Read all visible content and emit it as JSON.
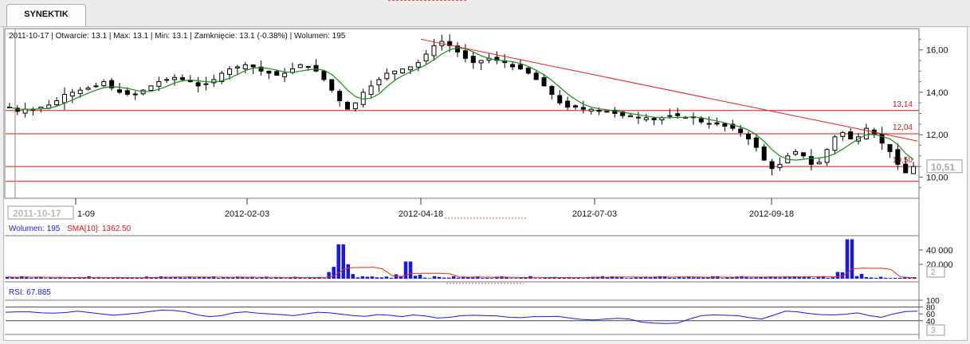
{
  "window": {
    "tab_label": "SYNEKTIK"
  },
  "info_bar": {
    "date": "2011-10-17",
    "open": "Otwarcie: 13.1",
    "max": "Max: 13.1",
    "min": "Min: 13.1",
    "close": "Zamknięcie: 13.1 (-0.38%)",
    "volume": "Wolumen: 195"
  },
  "colors": {
    "candle": "#000000",
    "sma_line": "#1e8a1e",
    "support_lines": "#d01818",
    "trend_line": "#e02020",
    "volume_bars": "#1a1adf",
    "volume_sma": "#e03010",
    "rsi_line": "#1a1adf",
    "cursor": "#888888"
  },
  "chart_data": [
    {
      "type": "candlestick",
      "name": "price",
      "x_ticks": [
        "1-09",
        "2012-02-03",
        "2012-04-18",
        "2012-07-03",
        "2012-09-18"
      ],
      "cursor_label": "2011-10-17",
      "y_ticks": [
        "10,00",
        "12,00",
        "14,00",
        "16,00"
      ],
      "ylim": [
        9.0,
        17.0
      ],
      "grid": true,
      "horizontal_lines": [
        {
          "label": "13,14",
          "value": 13.14
        },
        {
          "label": "12,04",
          "value": 12.04
        },
        {
          "label": "10,50",
          "value": 10.5
        },
        {
          "label": "",
          "value": 9.8
        }
      ],
      "trend_line": {
        "from": [
          "2012-04-18",
          16.5
        ],
        "to": [
          "end",
          11.7
        ]
      },
      "last_value_label": "10,51",
      "series_closes": [
        13.3,
        13.1,
        13.2,
        13.2,
        13.3,
        13.4,
        13.6,
        13.9,
        14.0,
        14.1,
        14.2,
        14.3,
        14.5,
        14.2,
        14.0,
        13.9,
        13.9,
        14.1,
        14.3,
        14.5,
        14.6,
        14.7,
        14.6,
        14.5,
        14.3,
        14.4,
        14.6,
        14.9,
        15.1,
        15.2,
        15.3,
        15.2,
        15.0,
        14.9,
        14.8,
        14.9,
        15.1,
        15.3,
        15.2,
        15.0,
        14.6,
        14.1,
        13.6,
        13.2,
        13.5,
        14.0,
        14.3,
        14.6,
        14.9,
        15.0,
        15.1,
        15.2,
        15.4,
        15.8,
        16.2,
        16.4,
        16.2,
        15.9,
        15.6,
        15.4,
        15.5,
        15.6,
        15.5,
        15.4,
        15.2,
        15.1,
        14.9,
        14.6,
        14.3,
        13.9,
        13.5,
        13.3,
        13.3,
        13.2,
        13.2,
        13.1,
        13.1,
        13.0,
        12.9,
        12.9,
        12.8,
        12.8,
        12.7,
        12.8,
        12.9,
        12.9,
        12.8,
        12.8,
        12.6,
        12.5,
        12.5,
        12.4,
        12.3,
        12.1,
        11.8,
        11.4,
        10.8,
        10.4,
        10.6,
        11.0,
        11.2,
        11.0,
        10.6,
        10.7,
        11.3,
        11.9,
        12.1,
        11.8,
        11.9,
        12.3,
        12.0,
        11.6,
        11.2,
        10.6,
        10.2,
        10.5
      ],
      "indicator": "SMA"
    },
    {
      "type": "bar",
      "name": "volume",
      "legend": "Wolumen: 195",
      "sma_legend": "SMA[10]: 1362.50",
      "y_ticks": [
        "20 000",
        "40 000"
      ],
      "ylim": [
        0,
        60000
      ],
      "marker_label": "2",
      "spikes": [
        {
          "approx_position": 0.365,
          "value": 48000
        },
        {
          "approx_position": 0.44,
          "value": 24000
        },
        {
          "approx_position": 0.925,
          "value": 55000
        }
      ],
      "typical_value": 2000
    },
    {
      "type": "line",
      "name": "rsi",
      "legend": "RSI: 67.885",
      "y_ticks": [
        "100",
        "80",
        "60",
        "40"
      ],
      "ylim": [
        0,
        100
      ],
      "reference_lines": [
        80,
        40
      ],
      "marker_label": "3",
      "values": [
        65,
        66,
        66,
        63,
        62,
        64,
        68,
        64,
        60,
        56,
        59,
        62,
        67,
        71,
        70,
        66,
        57,
        52,
        55,
        63,
        66,
        62,
        60,
        58,
        55,
        60,
        65,
        63,
        59,
        55,
        53,
        58,
        56,
        52,
        57,
        54,
        48,
        50,
        55,
        56,
        55,
        54,
        50,
        49,
        52,
        52,
        53,
        48,
        44,
        42,
        45,
        47,
        45,
        36,
        33,
        32,
        33,
        45,
        55,
        57,
        56,
        55,
        49,
        45,
        56,
        68,
        66,
        61,
        58,
        57,
        59,
        63,
        55,
        50,
        60,
        67,
        68
      ]
    }
  ]
}
